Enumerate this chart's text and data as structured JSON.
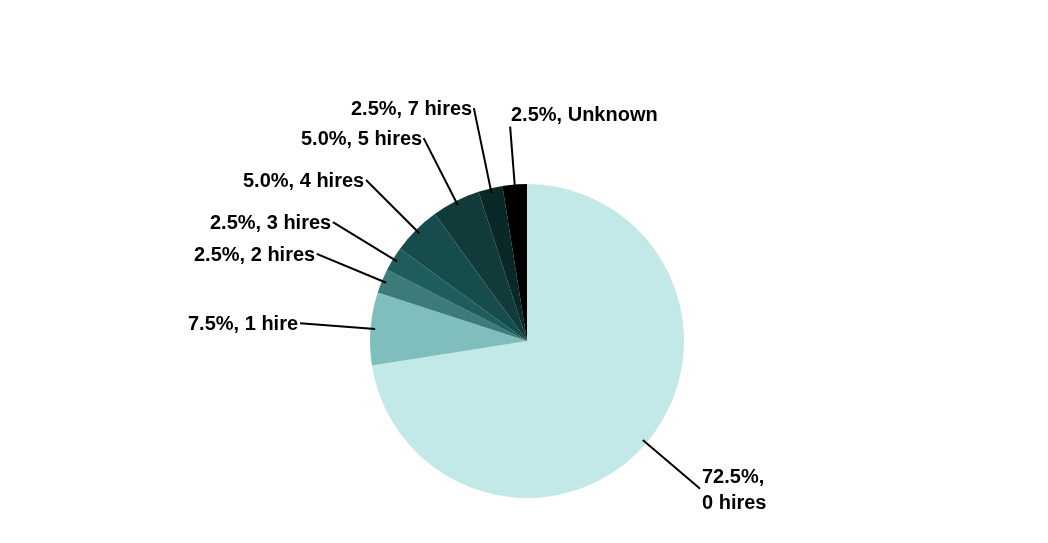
{
  "chart_data": {
    "type": "pie",
    "categories": [
      "0 hires",
      "1 hire",
      "2 hires",
      "3 hires",
      "4 hires",
      "5 hires",
      "7 hires",
      "Unknown"
    ],
    "values": [
      72.5,
      7.5,
      2.5,
      2.5,
      5.0,
      5.0,
      2.5,
      2.5
    ],
    "value_labels": [
      "72.5%,",
      "7.5%,",
      "2.5%,",
      "2.5%,",
      "5.0%,",
      "5.0%,",
      "2.5%,",
      "2.5%,"
    ],
    "colors": [
      "#c2e8e8",
      "#80bdbd",
      "#3d7b7b",
      "#1f5d5d",
      "#174c4c",
      "#113a3a",
      "#0b2828",
      "#000000"
    ],
    "legend": false
  }
}
